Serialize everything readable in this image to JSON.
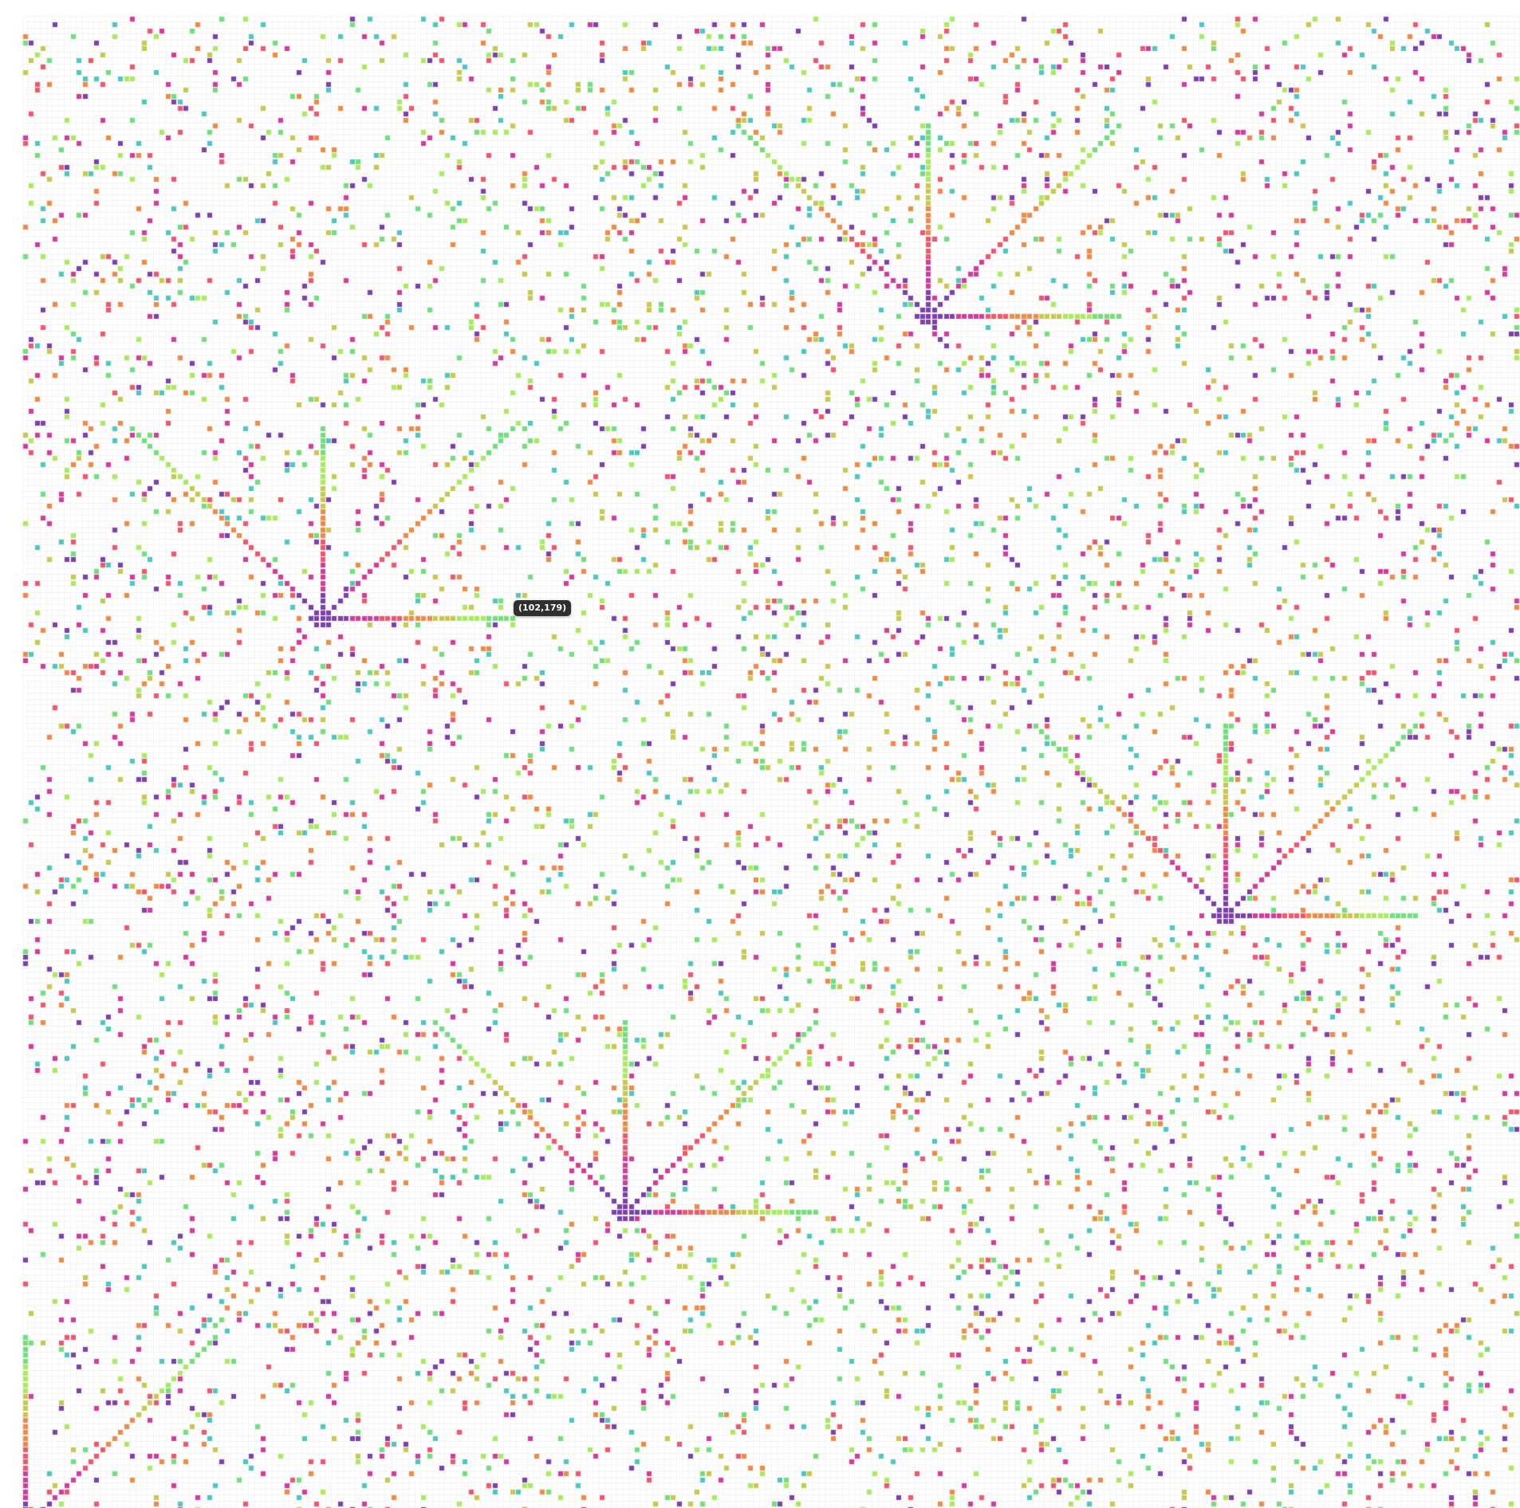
{
  "tooltip": {
    "text": "(102,179)"
  },
  "grid": {
    "columns": 255,
    "rows": 255,
    "background": "#ffffff",
    "line_color": "#ececec"
  },
  "palette": {
    "purple": "#7e3fb0",
    "magenta": "#d63a9a",
    "red": "#f2566b",
    "orange": "#f08a45",
    "yellow": "#c8c94a",
    "lime": "#a8ec5c",
    "green": "#6fe07a",
    "teal": "#4cc8c0"
  },
  "bursts": [
    {
      "cell": [
        152,
        50
      ]
    },
    {
      "cell": [
        50,
        101
      ]
    },
    {
      "cell": [
        202,
        151
      ]
    },
    {
      "cell": [
        101,
        201
      ]
    },
    {
      "cell": [
        0,
        254
      ]
    }
  ]
}
